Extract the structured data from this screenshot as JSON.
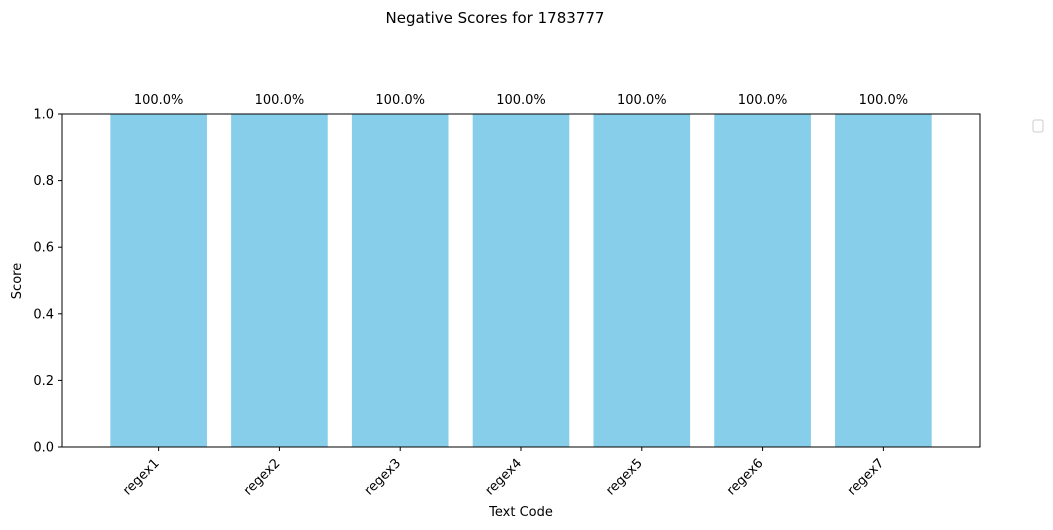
{
  "chart_data": {
    "type": "bar",
    "title": "Negative Scores for 1783777",
    "xlabel": "Text Code",
    "ylabel": "Score",
    "categories": [
      "regex1",
      "regex2",
      "regex3",
      "regex4",
      "regex5",
      "regex6",
      "regex7"
    ],
    "values": [
      1.0,
      1.0,
      1.0,
      1.0,
      1.0,
      1.0,
      1.0
    ],
    "data_labels": [
      "100.0%",
      "100.0%",
      "100.0%",
      "100.0%",
      "100.0%",
      "100.0%",
      "100.0%"
    ],
    "ylim": [
      0,
      1.0
    ],
    "yticks": [
      "0.0",
      "0.2",
      "0.4",
      "0.6",
      "0.8",
      "1.0"
    ],
    "grid": false,
    "legend": "empty, upper right outside plot",
    "colors": {
      "bar": "#87ceeb",
      "axis": "#000000"
    }
  }
}
